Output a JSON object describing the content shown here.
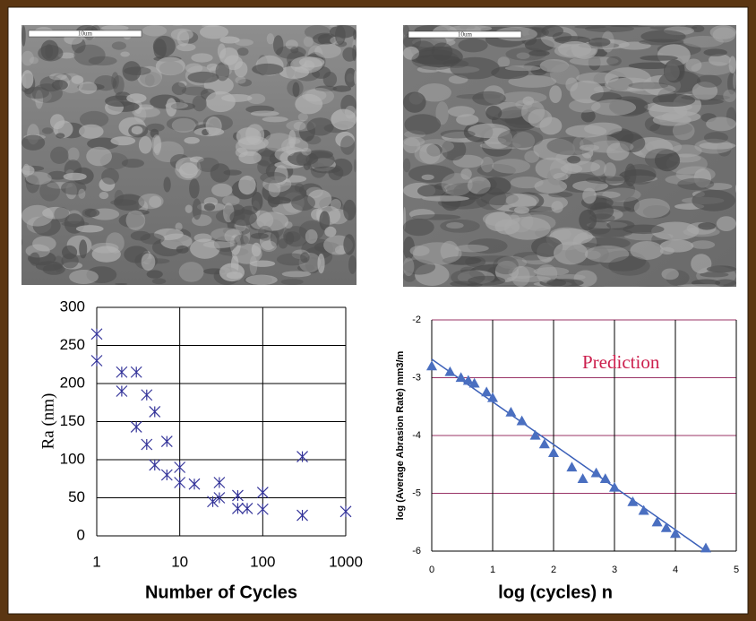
{
  "micrographs": [
    {
      "scale_label": "10um"
    },
    {
      "scale_label": "10um"
    }
  ],
  "chart_data": [
    {
      "type": "scatter",
      "xlabel": "Number of Cycles",
      "ylabel": "Ra (nm)",
      "x": [
        1,
        1,
        2,
        2,
        3,
        3,
        4,
        4,
        5,
        5,
        7,
        7,
        10,
        10,
        15,
        25,
        30,
        30,
        50,
        50,
        65,
        100,
        100,
        300,
        300,
        1000
      ],
      "values": [
        265,
        230,
        215,
        190,
        215,
        143,
        185,
        120,
        163,
        93,
        124,
        80,
        90,
        70,
        68,
        45,
        70,
        50,
        53,
        36,
        36,
        57,
        35,
        104,
        27,
        32
      ],
      "color": "#333399",
      "marker": "asterisk",
      "xscale": "log",
      "xlim": [
        1,
        1000
      ],
      "xticks": [
        1,
        10,
        100,
        1000
      ],
      "ylim": [
        0,
        300
      ],
      "yticks": [
        0,
        50,
        100,
        150,
        200,
        250,
        300
      ],
      "grid": true,
      "xgrid_color": "#000000",
      "ygrid_color": "#000000"
    },
    {
      "type": "scatter",
      "xlabel": "log (cycles) n",
      "ylabel": "log (Average Abrasion Rate) mm3/m",
      "annotation": "Prediction",
      "annotation_color": "#cc1f4d",
      "x": [
        0,
        0.3,
        0.48,
        0.6,
        0.7,
        0.9,
        1.0,
        1.3,
        1.48,
        1.7,
        1.85,
        2.0,
        2.3,
        2.48,
        2.7,
        2.85,
        3.0,
        3.3,
        3.48,
        3.7,
        3.85,
        4.0,
        4.5
      ],
      "values": [
        -2.8,
        -2.9,
        -3.0,
        -3.05,
        -3.1,
        -3.25,
        -3.35,
        -3.6,
        -3.75,
        -4.0,
        -4.15,
        -4.3,
        -4.55,
        -4.75,
        -4.65,
        -4.75,
        -4.9,
        -5.15,
        -5.3,
        -5.5,
        -5.6,
        -5.7,
        -5.95
      ],
      "color": "#4a6fc0",
      "marker": "triangle",
      "trendline": {
        "x": [
          0,
          4.5
        ],
        "values": [
          -2.68,
          -6.0
        ],
        "color": "#3a5fb8"
      },
      "xscale": "linear",
      "xlim": [
        0,
        5
      ],
      "xticks": [
        0,
        1,
        2,
        3,
        4,
        5
      ],
      "ylim": [
        -6,
        -2
      ],
      "yticks": [
        -2,
        -3,
        -4,
        -5,
        -6
      ],
      "grid": true,
      "xgrid_color": "#000000",
      "ygrid_color": "#993366"
    }
  ]
}
